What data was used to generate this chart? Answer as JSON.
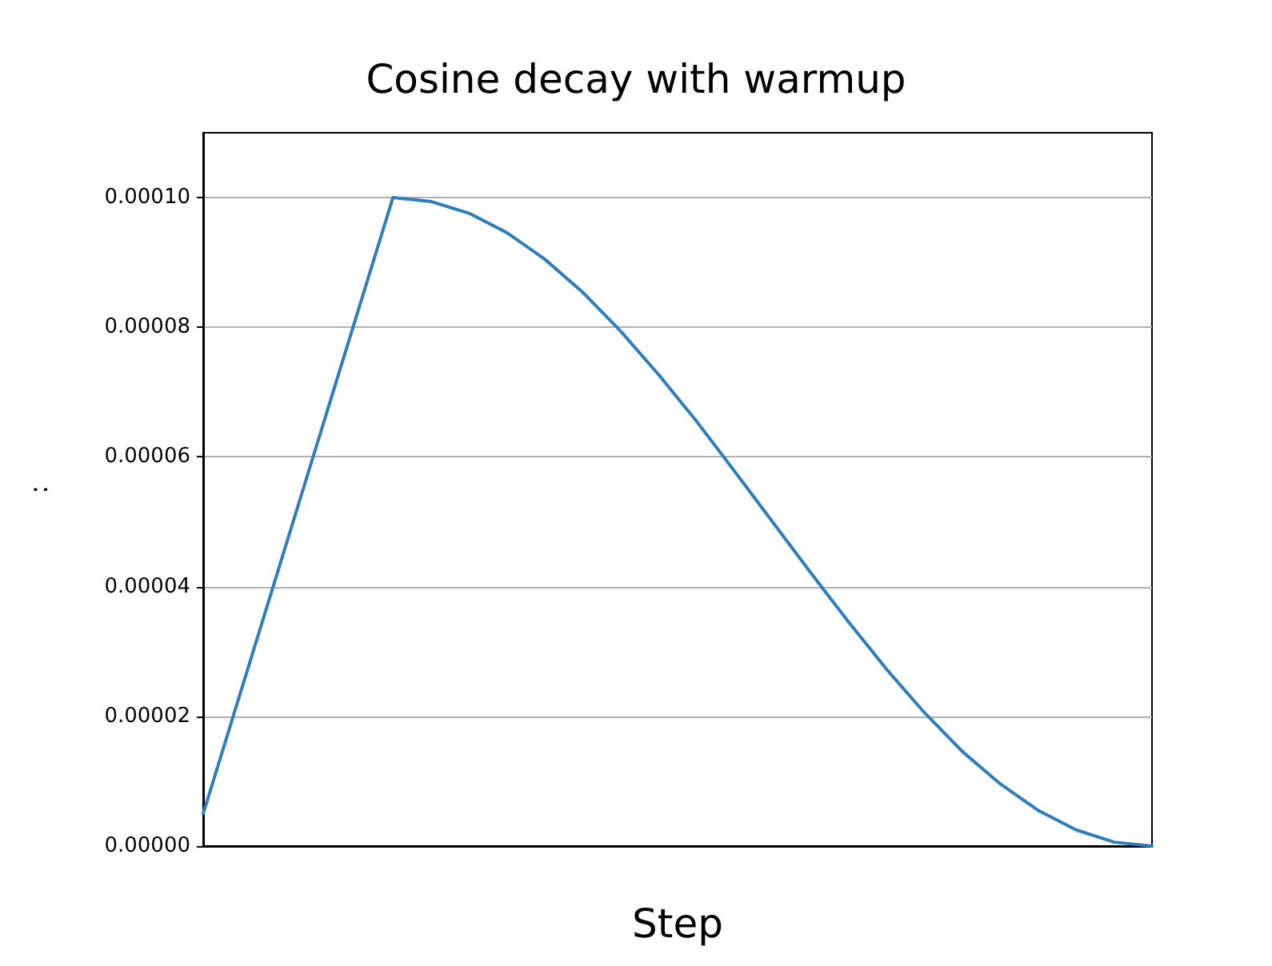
{
  "chart_data": {
    "type": "line",
    "title": "Cosine decay with warmup",
    "xlabel": "Step",
    "ylabel": ":",
    "categories": [
      null,
      null,
      null,
      null,
      null,
      null,
      null,
      null,
      null,
      null,
      null,
      null,
      null,
      null,
      null,
      null,
      null,
      null,
      null,
      null,
      null,
      null,
      null,
      null,
      null,
      null
    ],
    "series": [
      {
        "color": "#2f7ebc",
        "values": [
          5e-06,
          2.4e-05,
          4.3e-05,
          6.2e-05,
          8.1e-05,
          0.0001,
          9.94e-05,
          9.76e-05,
          9.46e-05,
          9.05e-05,
          8.54e-05,
          7.94e-05,
          7.27e-05,
          6.55e-05,
          5.78e-05,
          5e-05,
          4.22e-05,
          3.46e-05,
          2.73e-05,
          2.06e-05,
          1.46e-05,
          9.6e-06,
          5.5e-06,
          2.5e-06,
          6e-07,
          0
        ]
      }
    ],
    "ylim": [
      0,
      0.00011
    ],
    "yticks": [
      {
        "value": 0,
        "label": "0.00000"
      },
      {
        "value": 2e-05,
        "label": "0.00002"
      },
      {
        "value": 4e-05,
        "label": "0.00004"
      },
      {
        "value": 6e-05,
        "label": "0.00006"
      },
      {
        "value": 8e-05,
        "label": "0.00008"
      },
      {
        "value": 0.0001,
        "label": "0.00010"
      }
    ],
    "grid": "y",
    "tick_labels": "y",
    "marker": "none",
    "line_style": "solid"
  }
}
